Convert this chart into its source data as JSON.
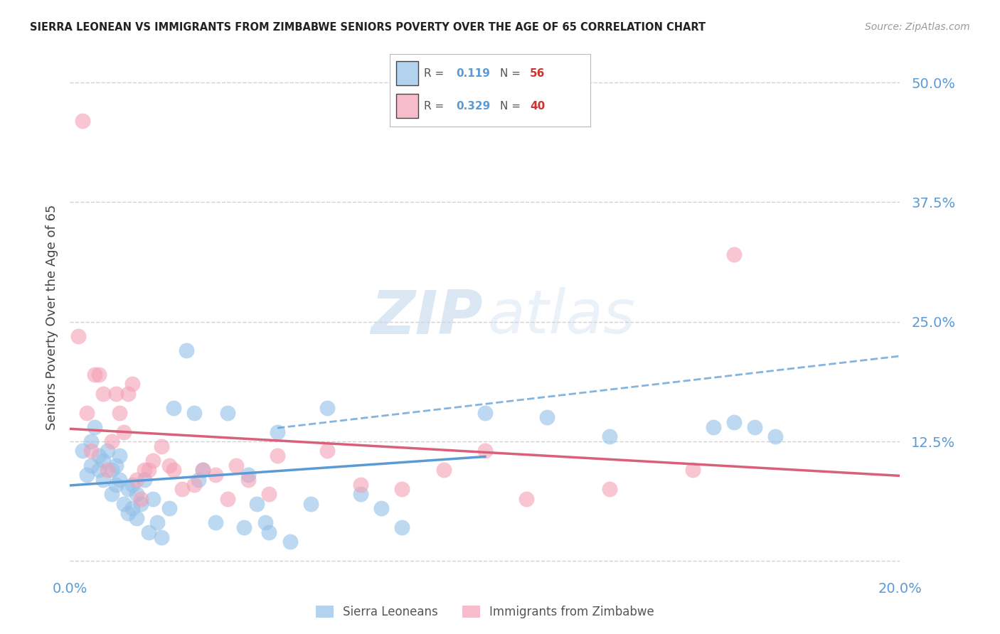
{
  "title": "SIERRA LEONEAN VS IMMIGRANTS FROM ZIMBABWE SENIORS POVERTY OVER THE AGE OF 65 CORRELATION CHART",
  "source": "Source: ZipAtlas.com",
  "ylabel": "Seniors Poverty Over the Age of 65",
  "xmin": 0.0,
  "xmax": 0.2,
  "ymin": -0.01,
  "ymax": 0.52,
  "yticks": [
    0.0,
    0.125,
    0.25,
    0.375,
    0.5
  ],
  "ytick_labels": [
    "",
    "12.5%",
    "25.0%",
    "37.5%",
    "50.0%"
  ],
  "xtick_vals": [
    0.0,
    0.05,
    0.1,
    0.15,
    0.2
  ],
  "xtick_labels": [
    "0.0%",
    "",
    "",
    "",
    "20.0%"
  ],
  "series1_color": "#92C0E8",
  "series2_color": "#F4A0B5",
  "series1_label": "Sierra Leoneans",
  "series2_label": "Immigrants from Zimbabwe",
  "series1_R": "0.119",
  "series1_N": "56",
  "series2_R": "0.329",
  "series2_N": "40",
  "trend1_color": "#5B9BD5",
  "trend2_color": "#D9607A",
  "axis_tick_color": "#5B9BD5",
  "grid_color": "#CCCCCC",
  "sierra_x": [
    0.003,
    0.004,
    0.005,
    0.005,
    0.006,
    0.007,
    0.007,
    0.008,
    0.008,
    0.009,
    0.01,
    0.01,
    0.011,
    0.011,
    0.012,
    0.012,
    0.013,
    0.014,
    0.014,
    0.015,
    0.015,
    0.016,
    0.016,
    0.017,
    0.018,
    0.019,
    0.02,
    0.021,
    0.022,
    0.024,
    0.025,
    0.028,
    0.03,
    0.031,
    0.032,
    0.035,
    0.038,
    0.042,
    0.043,
    0.045,
    0.047,
    0.048,
    0.05,
    0.053,
    0.058,
    0.062,
    0.07,
    0.075,
    0.08,
    0.1,
    0.115,
    0.13,
    0.155,
    0.16,
    0.165,
    0.17
  ],
  "sierra_y": [
    0.115,
    0.09,
    0.1,
    0.125,
    0.14,
    0.095,
    0.11,
    0.085,
    0.105,
    0.115,
    0.07,
    0.095,
    0.08,
    0.1,
    0.085,
    0.11,
    0.06,
    0.05,
    0.075,
    0.055,
    0.08,
    0.045,
    0.07,
    0.06,
    0.085,
    0.03,
    0.065,
    0.04,
    0.025,
    0.055,
    0.16,
    0.22,
    0.155,
    0.085,
    0.095,
    0.04,
    0.155,
    0.035,
    0.09,
    0.06,
    0.04,
    0.03,
    0.135,
    0.02,
    0.06,
    0.16,
    0.07,
    0.055,
    0.035,
    0.155,
    0.15,
    0.13,
    0.14,
    0.145,
    0.14,
    0.13
  ],
  "zimbabwe_x": [
    0.002,
    0.003,
    0.004,
    0.005,
    0.006,
    0.007,
    0.008,
    0.009,
    0.01,
    0.011,
    0.012,
    0.013,
    0.014,
    0.015,
    0.016,
    0.017,
    0.018,
    0.019,
    0.02,
    0.022,
    0.024,
    0.025,
    0.027,
    0.03,
    0.032,
    0.035,
    0.038,
    0.04,
    0.043,
    0.048,
    0.05,
    0.062,
    0.07,
    0.08,
    0.09,
    0.1,
    0.11,
    0.13,
    0.15,
    0.16
  ],
  "zimbabwe_y": [
    0.235,
    0.46,
    0.155,
    0.115,
    0.195,
    0.195,
    0.175,
    0.095,
    0.125,
    0.175,
    0.155,
    0.135,
    0.175,
    0.185,
    0.085,
    0.065,
    0.095,
    0.095,
    0.105,
    0.12,
    0.1,
    0.095,
    0.075,
    0.08,
    0.095,
    0.09,
    0.065,
    0.1,
    0.085,
    0.07,
    0.11,
    0.115,
    0.08,
    0.075,
    0.095,
    0.115,
    0.065,
    0.075,
    0.095,
    0.32
  ]
}
